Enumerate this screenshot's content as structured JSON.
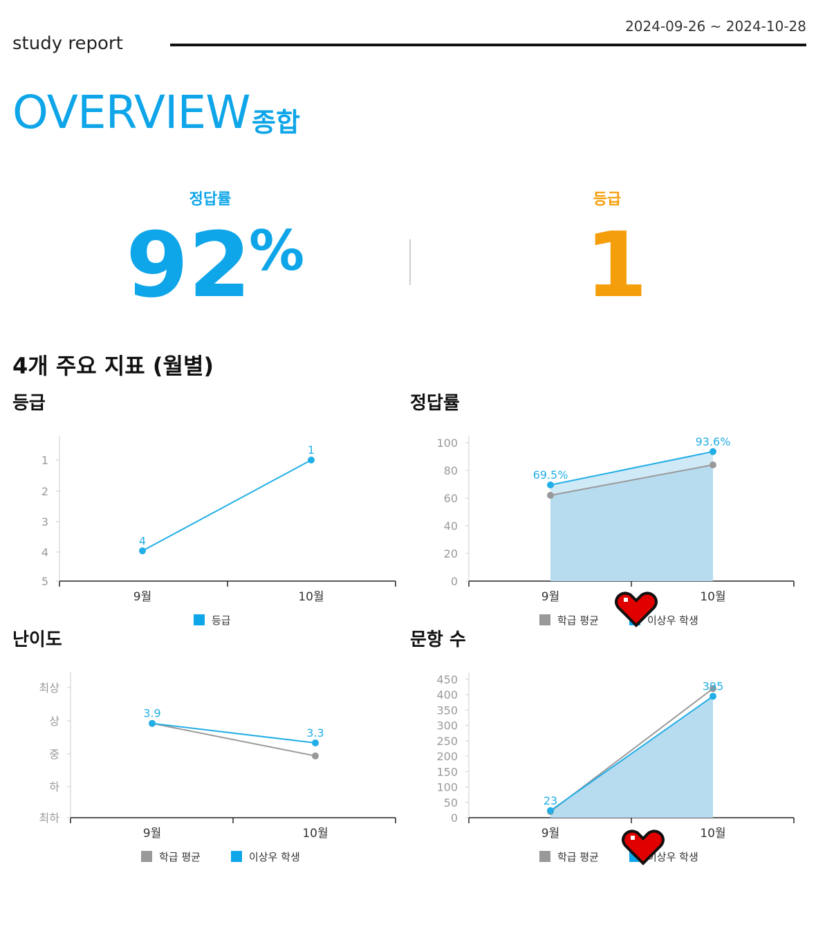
{
  "header": {
    "report_label": "study report",
    "date_range": "2024-09-26 ~ 2024-10-28"
  },
  "overview": {
    "title": "OVERVIEW",
    "subtitle": "종합"
  },
  "kpis": {
    "accuracy": {
      "label": "정답률",
      "value": "92",
      "unit": "%"
    },
    "grade": {
      "label": "등급",
      "value": "1"
    }
  },
  "section_title": "4개 주요 지표 (월별)",
  "colors": {
    "accent_blue": "#0ea5e9",
    "accent_orange": "#f59e0b",
    "series_blue": "#22aee6",
    "series_gray": "#999999",
    "area_blue": "#b7dcef",
    "area_light": "#cfe9f7"
  },
  "stickers": [
    "heart-icon",
    "heart-icon"
  ],
  "chart_data": [
    {
      "id": "grade",
      "type": "line",
      "title": "등급",
      "categories": [
        "9월",
        "10월"
      ],
      "y_ticks": [
        "1",
        "2",
        "3",
        "4",
        "5"
      ],
      "ylim": [
        1,
        5
      ],
      "y_reversed": true,
      "series": [
        {
          "name": "등급",
          "color": "#22aee6",
          "values": [
            4,
            1
          ],
          "labels": [
            "4",
            "1"
          ]
        }
      ],
      "legend": [
        "등급"
      ],
      "legend_position": "bottom"
    },
    {
      "id": "accuracy",
      "type": "area",
      "title": "정답률",
      "categories": [
        "9월",
        "10월"
      ],
      "y_ticks": [
        "0",
        "20",
        "40",
        "60",
        "80",
        "100"
      ],
      "ylim": [
        0,
        100
      ],
      "series": [
        {
          "name": "학급 평균",
          "color": "#999999",
          "values": [
            62,
            84
          ],
          "labels": []
        },
        {
          "name": "이상우 학생",
          "color": "#22aee6",
          "values": [
            69.5,
            93.6
          ],
          "labels": [
            "69.5%",
            "93.6%"
          ]
        }
      ],
      "legend": [
        "학급 평균",
        "이상우 학생"
      ],
      "legend_position": "bottom"
    },
    {
      "id": "difficulty",
      "type": "line",
      "title": "난이도",
      "categories": [
        "9월",
        "10월"
      ],
      "y_ticks": [
        "최상",
        "상",
        "중",
        "하",
        "최하"
      ],
      "ylim": [
        1,
        5
      ],
      "series": [
        {
          "name": "학급 평균",
          "color": "#999999",
          "values": [
            3.9,
            2.9
          ],
          "labels": []
        },
        {
          "name": "이상우 학생",
          "color": "#22aee6",
          "values": [
            3.9,
            3.3
          ],
          "labels": [
            "3.9",
            "3.3"
          ]
        }
      ],
      "legend": [
        "학급 평균",
        "이상우 학생"
      ],
      "legend_position": "bottom"
    },
    {
      "id": "questions",
      "type": "area",
      "title": "문항 수",
      "categories": [
        "9월",
        "10월"
      ],
      "y_ticks": [
        "0",
        "50",
        "100",
        "150",
        "200",
        "250",
        "300",
        "350",
        "400",
        "450"
      ],
      "ylim": [
        0,
        450
      ],
      "series": [
        {
          "name": "학급 평균",
          "color": "#999999",
          "values": [
            20,
            420
          ],
          "labels": []
        },
        {
          "name": "이상우 학생",
          "color": "#22aee6",
          "values": [
            23,
            395
          ],
          "labels": [
            "23",
            "395"
          ]
        }
      ],
      "legend": [
        "학급 평균",
        "이상우 학생"
      ],
      "legend_position": "bottom"
    }
  ]
}
